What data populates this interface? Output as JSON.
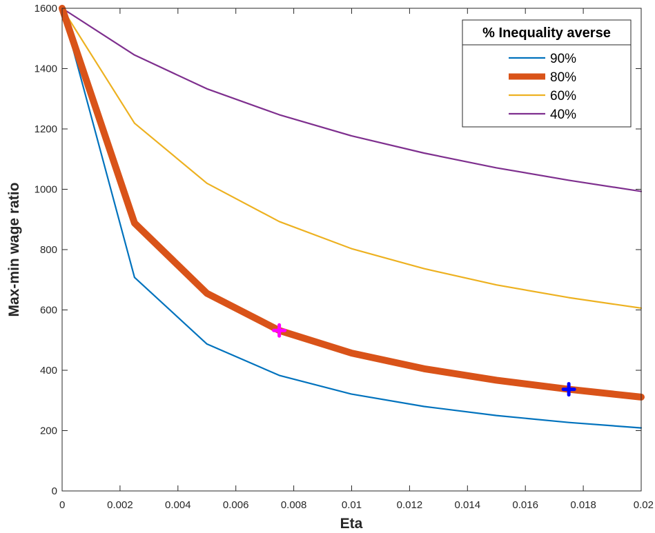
{
  "chart_data": {
    "type": "line",
    "title": "",
    "xlabel": "Eta",
    "ylabel": "Max-min wage ratio",
    "xlim": [
      0,
      0.02
    ],
    "ylim": [
      0,
      1600
    ],
    "x_ticks": [
      0,
      0.002,
      0.004,
      0.006,
      0.008,
      0.01,
      0.012,
      0.014,
      0.016,
      0.018,
      0.02
    ],
    "x_tick_labels": [
      "0",
      "0.002",
      "0.004",
      "0.006",
      "0.008",
      "0.01",
      "0.012",
      "0.014",
      "0.016",
      "0.018",
      "0.02"
    ],
    "y_ticks": [
      0,
      200,
      400,
      600,
      800,
      1000,
      1200,
      1400,
      1600
    ],
    "y_tick_labels": [
      "0",
      "200",
      "400",
      "600",
      "800",
      "1000",
      "1200",
      "1400",
      "1600"
    ],
    "grid": false,
    "legend": {
      "title": "% Inequality averse",
      "placement": "top-right"
    },
    "x": [
      0,
      0.0025,
      0.005,
      0.0075,
      0.01,
      0.0125,
      0.015,
      0.0175,
      0.02
    ],
    "series": [
      {
        "name": "90%",
        "color": "#0072BD",
        "emphasis": false,
        "values": [
          1600,
          708,
          487,
          383,
          321,
          280,
          250,
          227,
          209
        ]
      },
      {
        "name": "80%",
        "color": "#D95319",
        "emphasis": true,
        "values": [
          1600,
          888,
          655,
          532,
          457,
          405,
          367,
          337,
          311
        ]
      },
      {
        "name": "60%",
        "color": "#EDB120",
        "emphasis": false,
        "values": [
          1600,
          1219,
          1020,
          893,
          803,
          737,
          683,
          641,
          606
        ]
      },
      {
        "name": "40%",
        "color": "#7E2F8E",
        "emphasis": false,
        "values": [
          1600,
          1445,
          1333,
          1247,
          1177,
          1120,
          1071,
          1030,
          993
        ]
      }
    ],
    "markers": [
      {
        "x": 0.0075,
        "y": 532,
        "shape": "plus",
        "color": "#FF00FF"
      },
      {
        "x": 0.0175,
        "y": 337,
        "shape": "plus",
        "color": "#0000FF"
      }
    ]
  }
}
